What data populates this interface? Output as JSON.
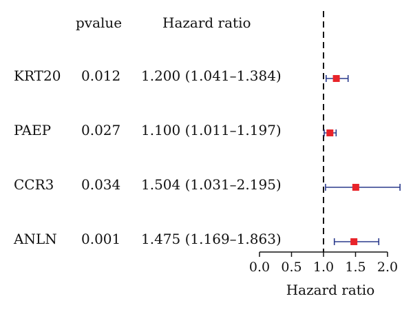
{
  "chart_data": {
    "type": "forest",
    "headers": {
      "pvalue": "pvalue",
      "hazard_ratio": "Hazard ratio"
    },
    "xlabel": "Hazard ratio",
    "xlim": [
      0,
      2.0
    ],
    "xticks": [
      "0.0",
      "0.5",
      "1.0",
      "1.5",
      "2.0"
    ],
    "reference_line": 1.0,
    "colors": {
      "point": "#e8242a",
      "ci": "#2a3a8c",
      "reference": "#111111"
    },
    "rows": [
      {
        "gene": "KRT20",
        "pvalue": "0.012",
        "hr_text": "1.200 (1.041–1.384)",
        "hr": 1.2,
        "lower": 1.041,
        "upper": 1.384
      },
      {
        "gene": "PAEP",
        "pvalue": "0.027",
        "hr_text": "1.100 (1.011–1.197)",
        "hr": 1.1,
        "lower": 1.011,
        "upper": 1.197
      },
      {
        "gene": "CCR3",
        "pvalue": "0.034",
        "hr_text": "1.504 (1.031–2.195)",
        "hr": 1.504,
        "lower": 1.031,
        "upper": 2.195
      },
      {
        "gene": "ANLN",
        "pvalue": "0.001",
        "hr_text": "1.475 (1.169–1.863)",
        "hr": 1.475,
        "lower": 1.169,
        "upper": 1.863
      }
    ]
  }
}
